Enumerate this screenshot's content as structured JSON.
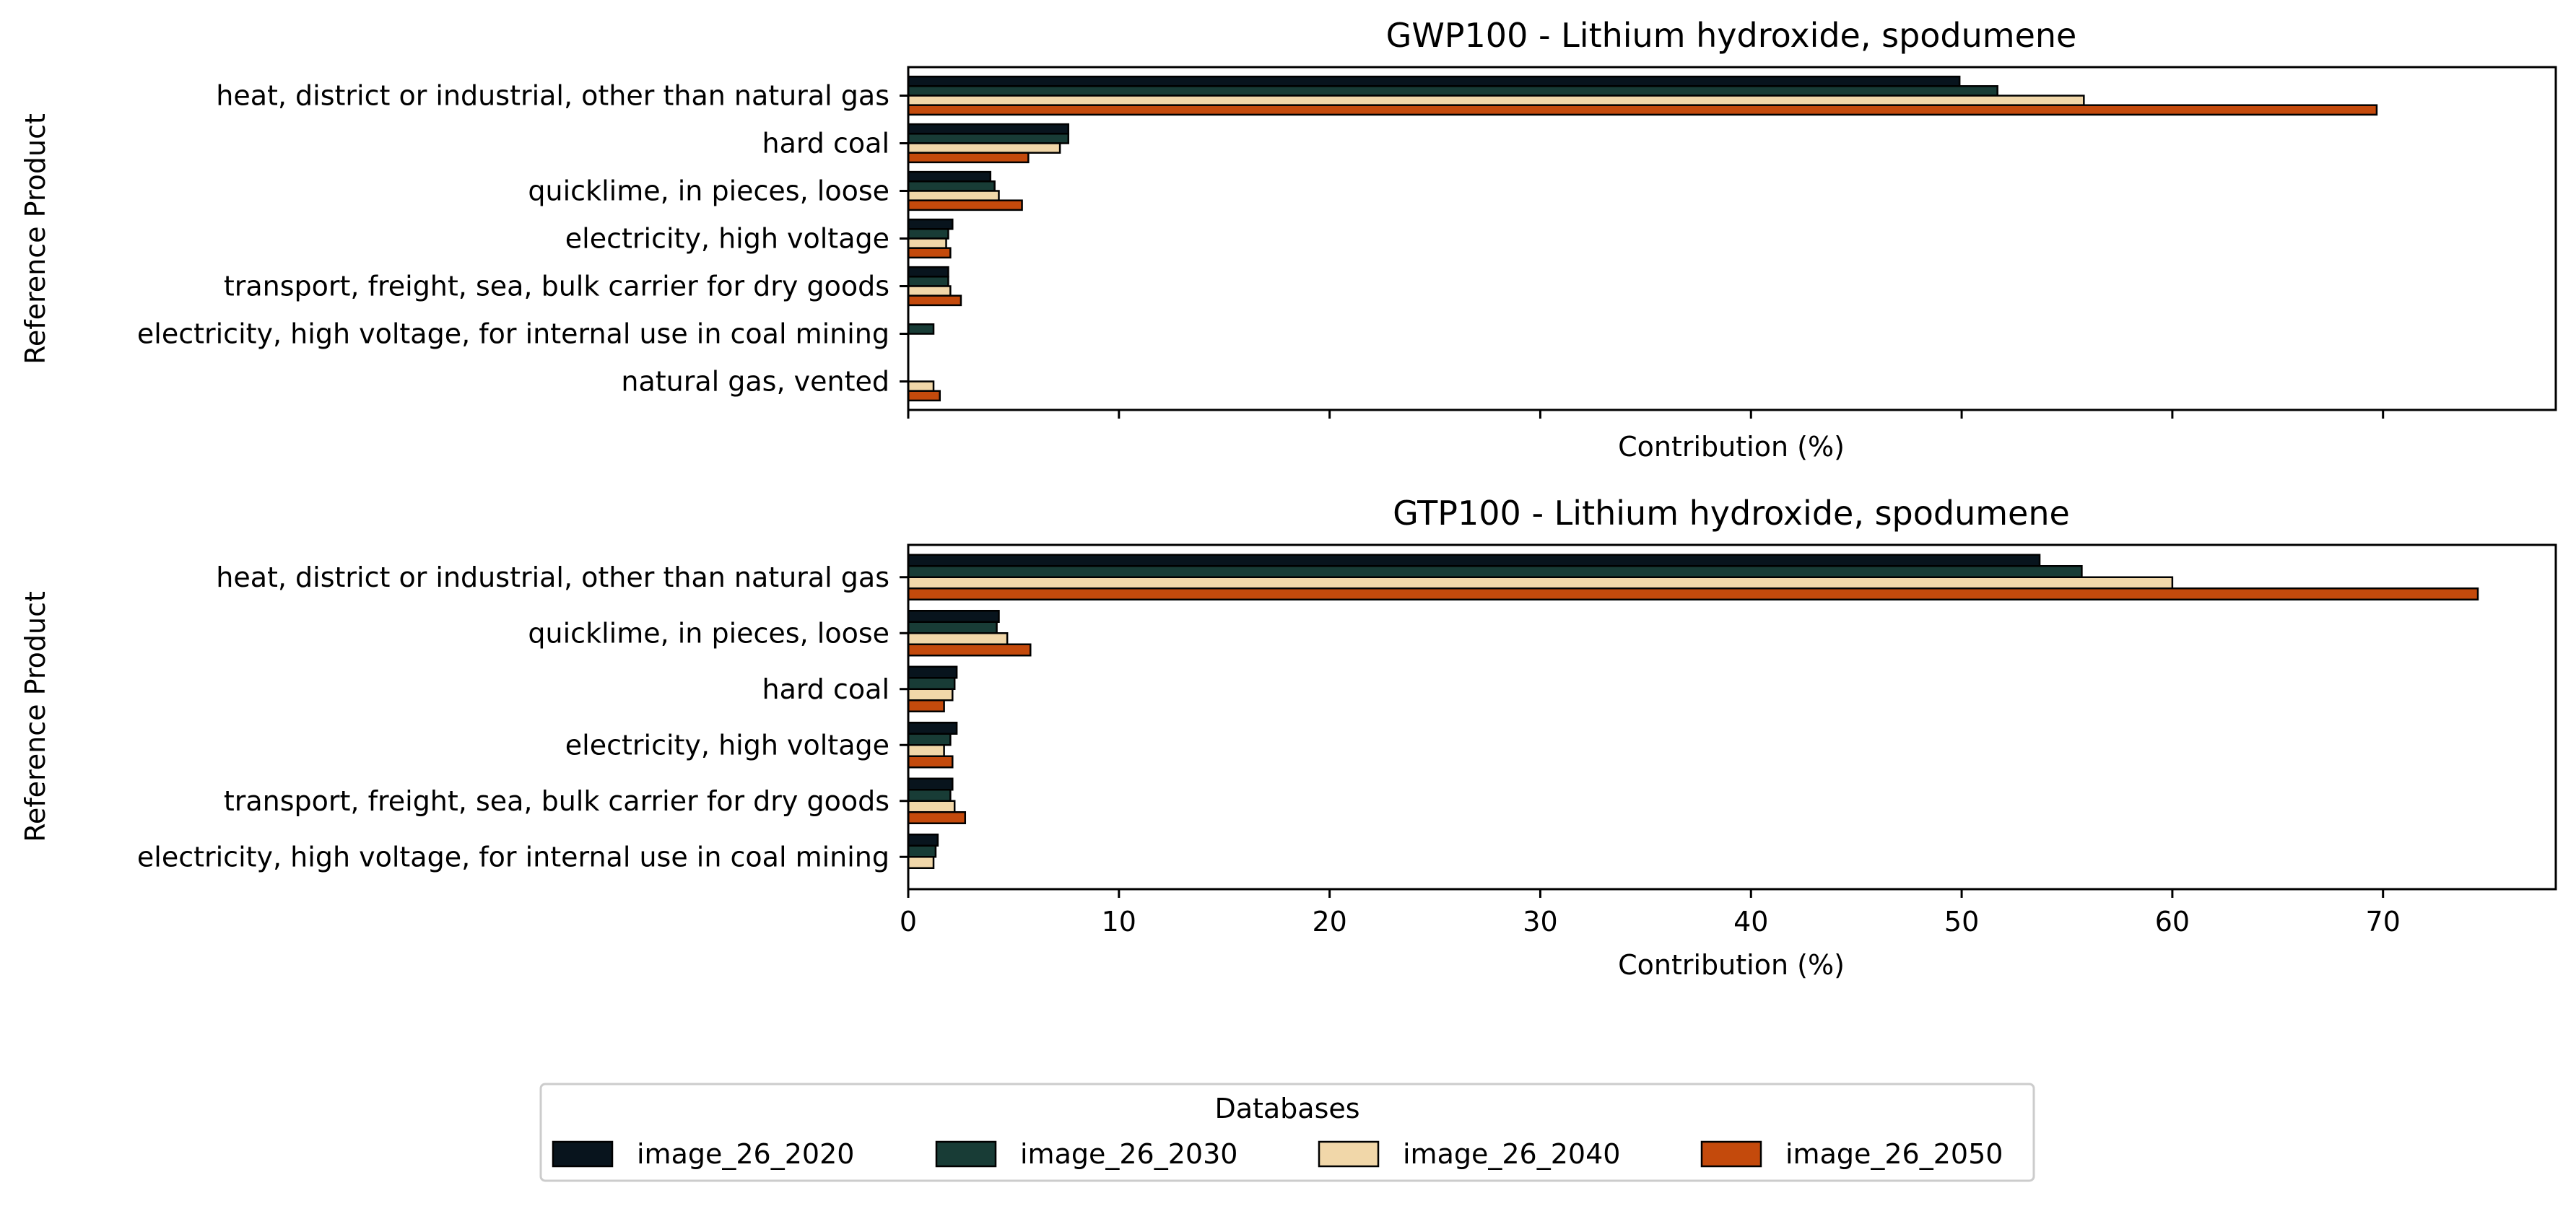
{
  "chart_data": [
    {
      "type": "bar",
      "orientation": "horizontal",
      "title": "GWP100 - Lithium hydroxide, spodumene",
      "xlabel": "Contribution (%)",
      "ylabel": "Reference Product",
      "xlim": [
        0,
        78.2
      ],
      "xticks": [
        0,
        10,
        20,
        30,
        40,
        50,
        60,
        70
      ],
      "show_xtick_labels": false,
      "grid": false,
      "categories": [
        "heat, district or industrial, other than natural gas",
        "hard coal",
        "quicklime, in pieces, loose",
        "electricity, high voltage",
        "transport, freight, sea, bulk carrier for dry goods",
        "electricity, high voltage, for internal use in coal mining",
        "natural gas, vented"
      ],
      "series": [
        {
          "name": "image_26_2020",
          "values": [
            49.9,
            7.6,
            3.9,
            2.1,
            1.9,
            0.0,
            0.0
          ]
        },
        {
          "name": "image_26_2030",
          "values": [
            51.7,
            7.6,
            4.1,
            1.9,
            1.9,
            1.2,
            0.0
          ]
        },
        {
          "name": "image_26_2040",
          "values": [
            55.8,
            7.2,
            4.3,
            1.8,
            2.0,
            0.0,
            1.2
          ]
        },
        {
          "name": "image_26_2050",
          "values": [
            69.7,
            5.7,
            5.4,
            2.0,
            2.5,
            0.0,
            1.5
          ]
        }
      ]
    },
    {
      "type": "bar",
      "orientation": "horizontal",
      "title": "GTP100 - Lithium hydroxide, spodumene",
      "xlabel": "Contribution (%)",
      "ylabel": "Reference Product",
      "xlim": [
        0,
        78.2
      ],
      "xticks": [
        0,
        10,
        20,
        30,
        40,
        50,
        60,
        70
      ],
      "show_xtick_labels": true,
      "grid": false,
      "categories": [
        "heat, district or industrial, other than natural gas",
        "quicklime, in pieces, loose",
        "hard coal",
        "electricity, high voltage",
        "transport, freight, sea, bulk carrier for dry goods",
        "electricity, high voltage, for internal use in coal mining"
      ],
      "series": [
        {
          "name": "image_26_2020",
          "values": [
            53.7,
            4.3,
            2.3,
            2.3,
            2.1,
            1.4
          ]
        },
        {
          "name": "image_26_2030",
          "values": [
            55.7,
            4.2,
            2.2,
            2.0,
            2.0,
            1.3
          ]
        },
        {
          "name": "image_26_2040",
          "values": [
            60.0,
            4.7,
            2.1,
            1.7,
            2.2,
            1.2
          ]
        },
        {
          "name": "image_26_2050",
          "values": [
            74.5,
            5.8,
            1.7,
            2.1,
            2.7,
            0.0
          ]
        }
      ]
    }
  ],
  "legend": {
    "title": "Databases",
    "placement": "bottom-center",
    "items": [
      "image_26_2020",
      "image_26_2030",
      "image_26_2040",
      "image_26_2050"
    ]
  },
  "colors": {
    "image_26_2020": "#08141d",
    "image_26_2030": "#183c36",
    "image_26_2040": "#f1d7a9",
    "image_26_2050": "#c44a0c",
    "edge": "#000000"
  }
}
